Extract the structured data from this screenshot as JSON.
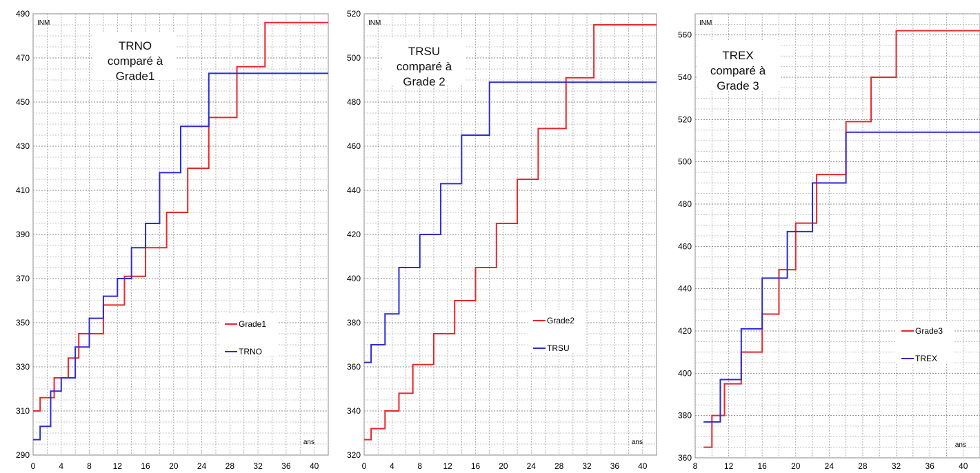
{
  "chart_data": [
    {
      "type": "line",
      "step": true,
      "xlim": [
        0,
        42
      ],
      "ylim": [
        290,
        490
      ],
      "xticks": [
        0,
        4,
        8,
        12,
        16,
        20,
        24,
        28,
        32,
        36,
        40
      ],
      "yticks": [
        290,
        310,
        330,
        350,
        370,
        390,
        410,
        430,
        450,
        470,
        490
      ],
      "grid": true,
      "ylabel": "INM",
      "xlabel": "ans",
      "annotation": [
        "TRNO",
        "comparé à",
        "Grade1"
      ],
      "legend_position": "right",
      "series": [
        {
          "name": "Grade1",
          "color": "#e8262b",
          "points": [
            [
              0,
              310
            ],
            [
              1,
              316
            ],
            [
              3,
              325
            ],
            [
              5,
              334
            ],
            [
              6.5,
              345
            ],
            [
              10,
              358
            ],
            [
              13,
              371
            ],
            [
              16,
              384
            ],
            [
              19,
              400
            ],
            [
              22,
              420
            ],
            [
              25,
              443
            ],
            [
              29,
              466
            ],
            [
              33,
              486
            ],
            [
              42,
              486
            ]
          ]
        },
        {
          "name": "TRNO",
          "color": "#2b2bd8",
          "points": [
            [
              0,
              297
            ],
            [
              1,
              303
            ],
            [
              2.5,
              319
            ],
            [
              4,
              325
            ],
            [
              6,
              339
            ],
            [
              8,
              352
            ],
            [
              10,
              362
            ],
            [
              12,
              370
            ],
            [
              14,
              384
            ],
            [
              16,
              395
            ],
            [
              18,
              418
            ],
            [
              21,
              439
            ],
            [
              25,
              463
            ],
            [
              42,
              463
            ]
          ]
        }
      ]
    },
    {
      "type": "line",
      "step": true,
      "xlim": [
        0,
        42
      ],
      "ylim": [
        320,
        520
      ],
      "xticks": [
        0,
        4,
        8,
        12,
        16,
        20,
        24,
        28,
        32,
        36,
        40
      ],
      "yticks": [
        320,
        340,
        360,
        380,
        400,
        420,
        440,
        460,
        480,
        500,
        520
      ],
      "grid": true,
      "ylabel": "INM",
      "xlabel": "ans",
      "annotation": [
        "TRSU",
        "comparé à",
        "Grade 2"
      ],
      "legend_position": "right",
      "series": [
        {
          "name": "Grade2",
          "color": "#e8262b",
          "points": [
            [
              0,
              327
            ],
            [
              1,
              332
            ],
            [
              3,
              340
            ],
            [
              5,
              348
            ],
            [
              7,
              361
            ],
            [
              10,
              375
            ],
            [
              13,
              390
            ],
            [
              16,
              405
            ],
            [
              19,
              425
            ],
            [
              22,
              445
            ],
            [
              25,
              468
            ],
            [
              29,
              491
            ],
            [
              33,
              515
            ],
            [
              42,
              515
            ]
          ]
        },
        {
          "name": "TRSU",
          "color": "#2b2bd8",
          "points": [
            [
              0,
              362
            ],
            [
              1,
              370
            ],
            [
              3,
              384
            ],
            [
              5,
              405
            ],
            [
              8,
              420
            ],
            [
              11,
              443
            ],
            [
              14,
              465
            ],
            [
              18,
              489
            ],
            [
              42,
              489
            ]
          ]
        }
      ]
    },
    {
      "type": "line",
      "step": true,
      "xlim": [
        8,
        42
      ],
      "ylim": [
        360,
        570
      ],
      "xticks": [
        8,
        12,
        16,
        20,
        24,
        28,
        32,
        36,
        40
      ],
      "yticks": [
        360,
        380,
        400,
        420,
        440,
        460,
        480,
        500,
        520,
        540,
        560
      ],
      "grid": true,
      "ylabel": "INM",
      "xlabel": "ans",
      "annotation": [
        "TREX",
        "comparé à",
        "Grade 3"
      ],
      "legend_position": "bottom-right",
      "series": [
        {
          "name": "Grade3",
          "color": "#e8262b",
          "points": [
            [
              9,
              365
            ],
            [
              10,
              380
            ],
            [
              11.5,
              395
            ],
            [
              13.5,
              410
            ],
            [
              16,
              428
            ],
            [
              18,
              449
            ],
            [
              20,
              471
            ],
            [
              22.5,
              494
            ],
            [
              26,
              519
            ],
            [
              29,
              540
            ],
            [
              32,
              562
            ],
            [
              42,
              562
            ]
          ]
        },
        {
          "name": "TREX",
          "color": "#2b2bd8",
          "points": [
            [
              9,
              377
            ],
            [
              11,
              397
            ],
            [
              13.5,
              421
            ],
            [
              16,
              445
            ],
            [
              19,
              467
            ],
            [
              22,
              490
            ],
            [
              26,
              514
            ],
            [
              42,
              514
            ]
          ]
        }
      ]
    }
  ]
}
